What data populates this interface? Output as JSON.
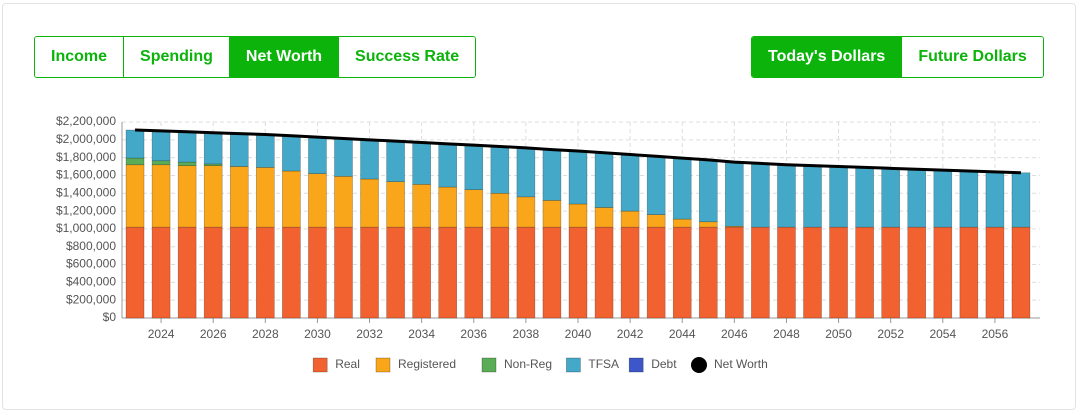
{
  "tabs": {
    "items": [
      "Income",
      "Spending",
      "Net Worth",
      "Success Rate"
    ],
    "active": 2
  },
  "dollar_tabs": {
    "items": [
      "Today's Dollars",
      "Future Dollars"
    ],
    "active": 0
  },
  "chart_data": {
    "type": "bar",
    "stacked": true,
    "x": [
      2023,
      2024,
      2025,
      2026,
      2027,
      2028,
      2029,
      2030,
      2031,
      2032,
      2033,
      2034,
      2035,
      2036,
      2037,
      2038,
      2039,
      2040,
      2041,
      2042,
      2043,
      2044,
      2045,
      2046,
      2047,
      2048,
      2049,
      2050,
      2051,
      2052,
      2053,
      2054,
      2055,
      2056,
      2057
    ],
    "xlim": [
      2022.5,
      2057.5
    ],
    "xticks": [
      2024,
      2026,
      2028,
      2030,
      2032,
      2034,
      2036,
      2038,
      2040,
      2042,
      2044,
      2046,
      2048,
      2050,
      2052,
      2054,
      2056
    ],
    "ylim": [
      0,
      2200000
    ],
    "yticks": [
      {
        "value": 0,
        "label": "$0"
      },
      {
        "value": 200000,
        "label": "$200,000"
      },
      {
        "value": 400000,
        "label": "$400,000"
      },
      {
        "value": 600000,
        "label": "$600,000"
      },
      {
        "value": 800000,
        "label": "$800,000"
      },
      {
        "value": 1000000,
        "label": "$1,000,000"
      },
      {
        "value": 1200000,
        "label": "$1,200,000"
      },
      {
        "value": 1400000,
        "label": "$1,400,000"
      },
      {
        "value": 1600000,
        "label": "$1,600,000"
      },
      {
        "value": 1800000,
        "label": "$1,800,000"
      },
      {
        "value": 2000000,
        "label": "$2,000,000"
      },
      {
        "value": 2200000,
        "label": "$2,200,000"
      }
    ],
    "grid": true,
    "legend": "bottom",
    "series": [
      {
        "name": "Real",
        "color": "#f26230",
        "values": [
          1020000,
          1020000,
          1020000,
          1020000,
          1020000,
          1020000,
          1020000,
          1020000,
          1020000,
          1020000,
          1020000,
          1020000,
          1020000,
          1020000,
          1020000,
          1020000,
          1020000,
          1020000,
          1020000,
          1020000,
          1020000,
          1020000,
          1020000,
          1020000,
          1020000,
          1020000,
          1020000,
          1020000,
          1020000,
          1020000,
          1020000,
          1020000,
          1020000,
          1020000,
          1020000
        ]
      },
      {
        "name": "Registered",
        "color": "#f9a61a",
        "values": [
          700000,
          700000,
          690000,
          690000,
          680000,
          670000,
          630000,
          600000,
          570000,
          540000,
          510000,
          480000,
          450000,
          420000,
          380000,
          340000,
          300000,
          260000,
          220000,
          180000,
          140000,
          90000,
          60000,
          10000,
          0,
          0,
          0,
          0,
          0,
          0,
          0,
          0,
          0,
          0,
          0
        ]
      },
      {
        "name": "Non-Reg",
        "color": "#5aac56",
        "values": [
          75000,
          45000,
          40000,
          20000,
          0,
          0,
          0,
          0,
          0,
          0,
          0,
          0,
          0,
          0,
          0,
          0,
          0,
          0,
          0,
          0,
          0,
          0,
          0,
          0,
          0,
          0,
          0,
          0,
          0,
          0,
          0,
          0,
          0,
          0,
          0
        ]
      },
      {
        "name": "TFSA",
        "color": "#44a9c9",
        "values": [
          315000,
          335000,
          340000,
          350000,
          370000,
          370000,
          395000,
          410000,
          425000,
          440000,
          455000,
          470000,
          485000,
          500000,
          525000,
          550000,
          570000,
          595000,
          615000,
          635000,
          655000,
          685000,
          695000,
          720000,
          715000,
          700000,
          690000,
          680000,
          670000,
          660000,
          650000,
          640000,
          630000,
          620000,
          610000
        ]
      },
      {
        "name": "Debt",
        "color": "#3d56c9",
        "values": [
          0,
          0,
          0,
          0,
          0,
          0,
          0,
          0,
          0,
          0,
          0,
          0,
          0,
          0,
          0,
          0,
          0,
          0,
          0,
          0,
          0,
          0,
          0,
          0,
          0,
          0,
          0,
          0,
          0,
          0,
          0,
          0,
          0,
          0,
          0
        ]
      },
      {
        "name": "Net Worth",
        "type": "line",
        "color": "#000000",
        "values": [
          2110000,
          2100000,
          2090000,
          2080000,
          2070000,
          2060000,
          2045000,
          2030000,
          2015000,
          2000000,
          1985000,
          1970000,
          1955000,
          1940000,
          1925000,
          1910000,
          1890000,
          1875000,
          1855000,
          1835000,
          1815000,
          1795000,
          1775000,
          1750000,
          1735000,
          1720000,
          1710000,
          1700000,
          1690000,
          1680000,
          1670000,
          1660000,
          1650000,
          1640000,
          1630000
        ]
      }
    ]
  }
}
